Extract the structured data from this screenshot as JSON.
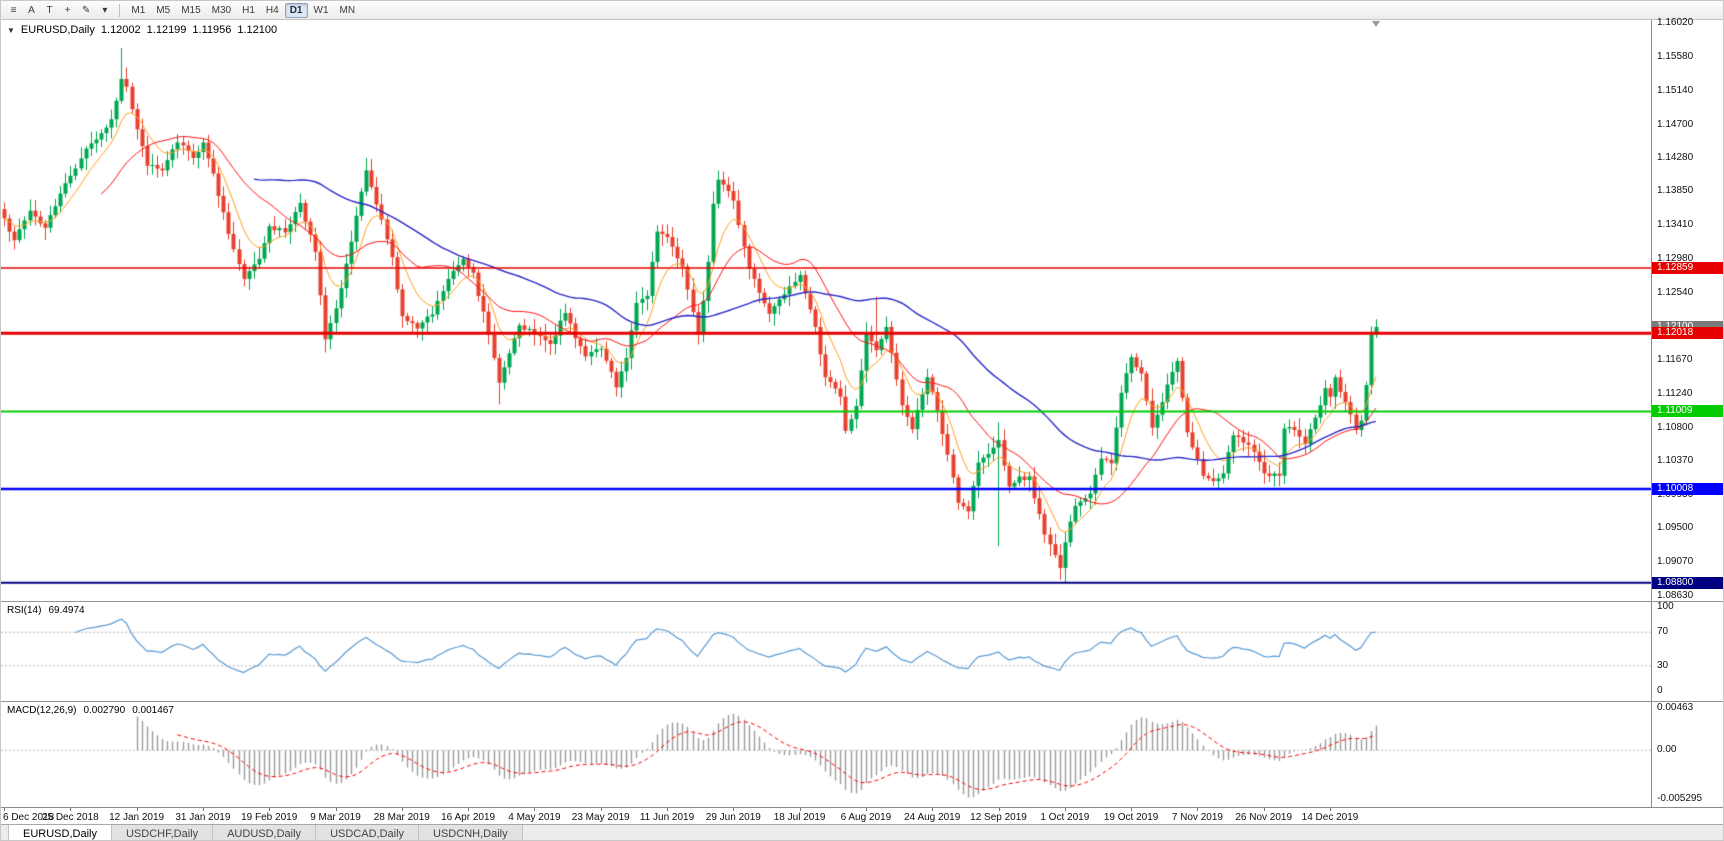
{
  "toolbar": {
    "tools": [
      {
        "name": "charts-list-icon",
        "glyph": "≡"
      },
      {
        "name": "cursor-tool-icon",
        "glyph": "A"
      },
      {
        "name": "text-tool-icon",
        "glyph": "T"
      },
      {
        "name": "crosshair-tool-icon",
        "glyph": "+"
      },
      {
        "name": "draw-tools-icon",
        "glyph": "✎"
      },
      {
        "name": "dropdown-arrow-icon",
        "glyph": "▾"
      }
    ],
    "timeframes": [
      "M1",
      "M5",
      "M15",
      "M30",
      "H1",
      "H4",
      "D1",
      "W1",
      "MN"
    ],
    "active_timeframe": "D1"
  },
  "quote_header": {
    "collapse_glyph": "▼",
    "symbol_period": "EURUSD,Daily",
    "open": "1.12002",
    "high": "1.12199",
    "low": "1.11956",
    "close": "1.12100"
  },
  "price_axis_ticks": [
    "1.16020",
    "1.15580",
    "1.15140",
    "1.14700",
    "1.14280",
    "1.13850",
    "1.13410",
    "1.12980",
    "1.12540",
    "1.12100",
    "1.11670",
    "1.11240",
    "1.10800",
    "1.10370",
    "1.09930",
    "1.09500",
    "1.09070",
    "1.08630"
  ],
  "rsi_panel": {
    "title": "RSI(14)",
    "value": "69.4974",
    "axis_labels": [
      "100",
      "70",
      "30",
      "0"
    ],
    "axis_values": [
      100,
      70,
      30,
      0
    ],
    "levels": [
      70,
      30
    ],
    "line_color": "#5b9bd5"
  },
  "macd_panel": {
    "title": "MACD(12,26,9)",
    "value_main": "0.002790",
    "value_signal": "0.001467",
    "axis_labels": [
      "0.00463",
      "0.00",
      "-0.005295"
    ],
    "axis_values": [
      0.00463,
      0,
      -0.005295
    ],
    "histogram_color": "#9b9b9b",
    "signal_color": "#ff0000"
  },
  "date_axis": {
    "labels": [
      "6 Dec 2018",
      "25 Dec 2018",
      "12 Jan 2019",
      "31 Jan 2019",
      "19 Feb 2019",
      "9 Mar 2019",
      "28 Mar 2019",
      "16 Apr 2019",
      "4 May 2019",
      "23 May 2019",
      "11 Jun 2019",
      "29 Jun 2019",
      "18 Jul 2019",
      "6 Aug 2019",
      "24 Aug 2019",
      "12 Sep 2019",
      "1 Oct 2019",
      "19 Oct 2019",
      "7 Nov 2019",
      "26 Nov 2019",
      "14 Dec 2019"
    ],
    "bars_per_label": 13
  },
  "tabs": {
    "items": [
      "EURUSD,Daily",
      "USDCHF,Daily",
      "AUDUSD,Daily",
      "USDCAD,Daily",
      "USDCNH,Daily"
    ],
    "active_index": 0
  },
  "chart_data": {
    "type": "candlestick",
    "symbol": "EURUSD",
    "timeframe": "Daily",
    "current_ohlc": {
      "open": 1.12002,
      "high": 1.12199,
      "low": 1.11956,
      "close": 1.121
    },
    "price_axis": {
      "min": 1.08615,
      "max": 1.16035
    },
    "candle_count": 270,
    "up_color": "#00a651",
    "down_color": "#e8402e",
    "close_anchors": [
      [
        0,
        1.135
      ],
      [
        2,
        1.1322
      ],
      [
        5,
        1.136
      ],
      [
        8,
        1.1338
      ],
      [
        11,
        1.1382
      ],
      [
        13,
        1.1405
      ],
      [
        16,
        1.144
      ],
      [
        19,
        1.146
      ],
      [
        21,
        1.1478
      ],
      [
        23,
        1.153
      ],
      [
        24,
        1.152
      ],
      [
        26,
        1.1465
      ],
      [
        28,
        1.1418
      ],
      [
        31,
        1.1412
      ],
      [
        34,
        1.1448
      ],
      [
        37,
        1.1428
      ],
      [
        39,
        1.1448
      ],
      [
        41,
        1.1408
      ],
      [
        44,
        1.133
      ],
      [
        47,
        1.1272
      ],
      [
        50,
        1.1298
      ],
      [
        52,
        1.134
      ],
      [
        55,
        1.1332
      ],
      [
        58,
        1.137
      ],
      [
        61,
        1.1307
      ],
      [
        63,
        1.1194
      ],
      [
        65,
        1.1234
      ],
      [
        68,
        1.132
      ],
      [
        71,
        1.1412
      ],
      [
        73,
        1.1368
      ],
      [
        76,
        1.13
      ],
      [
        78,
        1.1224
      ],
      [
        81,
        1.1208
      ],
      [
        84,
        1.1226
      ],
      [
        87,
        1.1272
      ],
      [
        90,
        1.1298
      ],
      [
        92,
        1.128
      ],
      [
        95,
        1.12
      ],
      [
        97,
        1.1138
      ],
      [
        99,
        1.1176
      ],
      [
        101,
        1.1212
      ],
      [
        104,
        1.12
      ],
      [
        107,
        1.1188
      ],
      [
        110,
        1.1228
      ],
      [
        114,
        1.1172
      ],
      [
        117,
        1.1182
      ],
      [
        120,
        1.1132
      ],
      [
        122,
        1.117
      ],
      [
        124,
        1.1241
      ],
      [
        126,
        1.125
      ],
      [
        128,
        1.1333
      ],
      [
        130,
        1.1326
      ],
      [
        133,
        1.1288
      ],
      [
        136,
        1.12
      ],
      [
        138,
        1.1294
      ],
      [
        139,
        1.1369
      ],
      [
        140,
        1.14
      ],
      [
        143,
        1.1373
      ],
      [
        146,
        1.1285
      ],
      [
        150,
        1.1227
      ],
      [
        153,
        1.1252
      ],
      [
        156,
        1.1277
      ],
      [
        159,
        1.121
      ],
      [
        161,
        1.1145
      ],
      [
        164,
        1.112
      ],
      [
        165,
        1.1076
      ],
      [
        167,
        1.1108
      ],
      [
        169,
        1.1203
      ],
      [
        171,
        1.118
      ],
      [
        173,
        1.121
      ],
      [
        176,
        1.1109
      ],
      [
        178,
        1.1078
      ],
      [
        181,
        1.1145
      ],
      [
        183,
        1.1102
      ],
      [
        187,
        1.0983
      ],
      [
        189,
        1.0972
      ],
      [
        191,
        1.1035
      ],
      [
        193,
        1.1046
      ],
      [
        195,
        1.1064
      ],
      [
        197,
        1.1004
      ],
      [
        201,
        1.1017
      ],
      [
        204,
        1.0942
      ],
      [
        207,
        1.0899
      ],
      [
        208,
        1.0932
      ],
      [
        210,
        1.0979
      ],
      [
        213,
        1.0995
      ],
      [
        215,
        1.104
      ],
      [
        217,
        1.1034
      ],
      [
        219,
        1.1125
      ],
      [
        221,
        1.1171
      ],
      [
        223,
        1.115
      ],
      [
        225,
        1.108
      ],
      [
        227,
        1.1113
      ],
      [
        229,
        1.1152
      ],
      [
        230,
        1.1166
      ],
      [
        232,
        1.1074
      ],
      [
        235,
        1.1018
      ],
      [
        237,
        1.1011
      ],
      [
        239,
        1.1021
      ],
      [
        241,
        1.107
      ],
      [
        244,
        1.1058
      ],
      [
        247,
        1.1021
      ],
      [
        250,
        1.1018
      ],
      [
        251,
        1.1079
      ],
      [
        253,
        1.1077
      ],
      [
        255,
        1.1059
      ],
      [
        257,
        1.1093
      ],
      [
        259,
        1.1131
      ],
      [
        260,
        1.112
      ],
      [
        261,
        1.1145
      ],
      [
        263,
        1.1113
      ],
      [
        265,
        1.1077
      ],
      [
        266,
        1.1089
      ],
      [
        267,
        1.1135
      ],
      [
        268,
        1.12
      ],
      [
        269,
        1.121
      ]
    ],
    "wick_overrides": [
      [
        23,
        1.157,
        null
      ],
      [
        63,
        null,
        1.1177
      ],
      [
        97,
        null,
        1.111
      ],
      [
        140,
        1.1412,
        null
      ],
      [
        171,
        1.1249,
        null
      ],
      [
        195,
        1.1087,
        1.0927
      ],
      [
        208,
        null,
        1.0879
      ]
    ],
    "last_ohlc": [
      1.12002,
      1.12199,
      1.11956,
      1.121
    ],
    "horizontal_lines": [
      {
        "price": 1.12859,
        "label": "1.12859",
        "color": "#e60000",
        "width": 1.5
      },
      {
        "price": 1.12018,
        "label": "1.12018",
        "color": "#e60000",
        "width": 3
      },
      {
        "price": 1.11009,
        "label": "1.11009",
        "color": "#00cc00",
        "width": 2
      },
      {
        "price": 1.10008,
        "label": "1.10008",
        "color": "#0000ff",
        "width": 2.5
      },
      {
        "price": 1.088,
        "label": "1.08800",
        "color": "#000080",
        "width": 2
      }
    ],
    "bid_marker": {
      "price": 1.121,
      "label": "1.12100",
      "color": "#7a7a7a"
    },
    "moving_averages": [
      {
        "type": "ema",
        "period": 8,
        "color": "#ff9f1f",
        "width": 1
      },
      {
        "type": "sma",
        "period": 20,
        "color": "#ff1414",
        "width": 1
      },
      {
        "type": "sma",
        "period": 50,
        "color": "#2929c8",
        "width": 1.4
      }
    ],
    "rsi": {
      "period": 14,
      "current": 69.4974,
      "levels": [
        70,
        30
      ]
    },
    "macd": {
      "fast": 12,
      "slow": 26,
      "signal": 9,
      "current_main": 0.00279,
      "current_signal": 0.001467,
      "axis_range": [
        -0.0054,
        0.0047
      ]
    }
  }
}
